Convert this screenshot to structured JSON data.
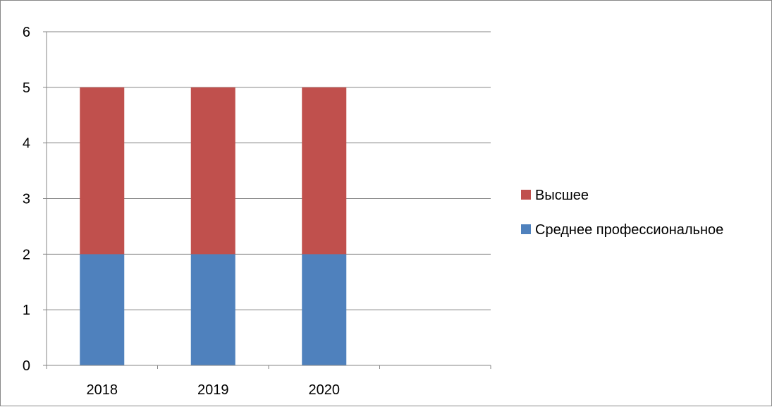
{
  "chart_data": {
    "type": "bar",
    "stacked": true,
    "title": "",
    "xlabel": "",
    "ylabel": "",
    "categories": [
      "2018",
      "2019",
      "2020",
      ""
    ],
    "series": [
      {
        "name": "Среднее профессиональное",
        "values": [
          2,
          2,
          2,
          null
        ],
        "color": "#4F81BD"
      },
      {
        "name": "Высшее",
        "values": [
          3,
          3,
          3,
          null
        ],
        "color": "#C0504D"
      }
    ],
    "ylim": [
      0,
      6
    ],
    "yticks": [
      "0",
      "1",
      "2",
      "3",
      "4",
      "5",
      "6"
    ],
    "grid": true,
    "legend_position": "right",
    "legend_order": [
      "Высшее",
      "Среднее профессиональное"
    ]
  }
}
